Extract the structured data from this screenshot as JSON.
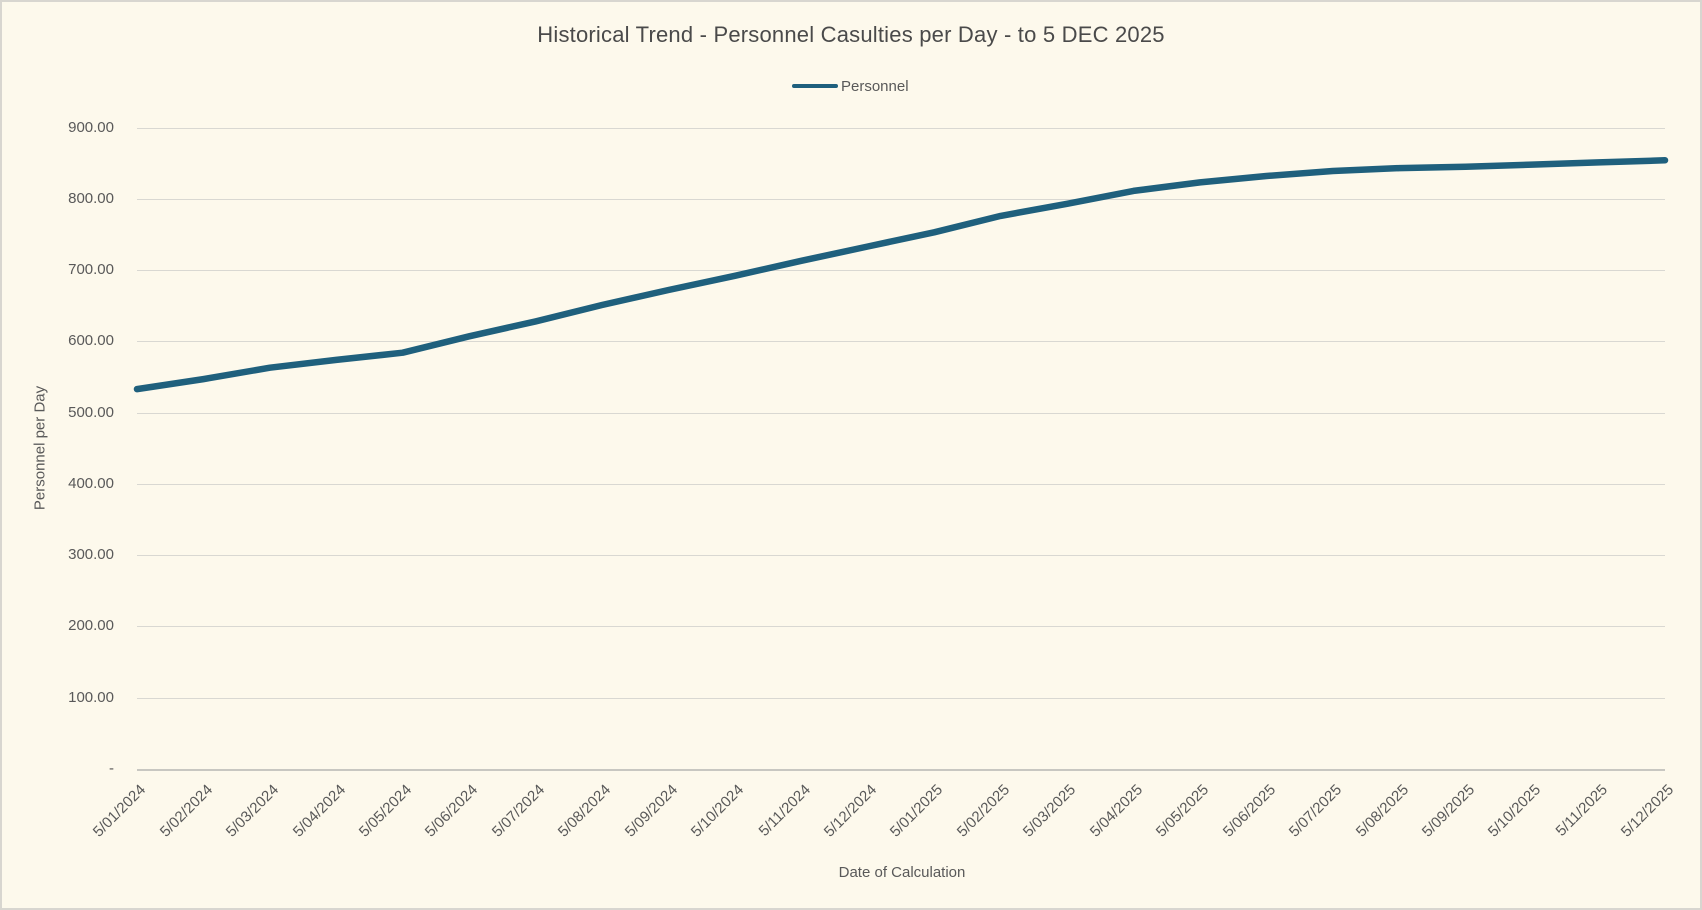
{
  "chart": {
    "title": "Historical Trend - Personnel Casulties per Day - to 5 DEC 2025",
    "legend_label": "Personnel",
    "x_axis_title": "Date of Calculation",
    "y_axis_title": "Personnel per Day",
    "colors": {
      "background": "#FDF9EC",
      "series_line": "#1F607D",
      "gridline": "#D9D8D2",
      "text": "#595959"
    }
  },
  "chart_data": {
    "type": "line",
    "title": "Historical Trend - Personnel Casulties per Day - to 5 DEC 2025",
    "xlabel": "Date of Calculation",
    "ylabel": "Personnel per Day",
    "legend_position": "top",
    "grid": true,
    "ylim": [
      0,
      900
    ],
    "yticks": [
      {
        "label": "900.00",
        "value": 900
      },
      {
        "label": "800.00",
        "value": 800
      },
      {
        "label": "700.00",
        "value": 700
      },
      {
        "label": "600.00",
        "value": 600
      },
      {
        "label": "500.00",
        "value": 500
      },
      {
        "label": "400.00",
        "value": 400
      },
      {
        "label": "300.00",
        "value": 300
      },
      {
        "label": "200.00",
        "value": 200
      },
      {
        "label": "100.00",
        "value": 100
      },
      {
        "label": "-",
        "value": 0
      }
    ],
    "categories": [
      "5/01/2024",
      "5/02/2024",
      "5/03/2024",
      "5/04/2024",
      "5/05/2024",
      "5/06/2024",
      "5/07/2024",
      "5/08/2024",
      "5/09/2024",
      "5/10/2024",
      "5/11/2024",
      "5/12/2024",
      "5/01/2025",
      "5/02/2025",
      "5/03/2025",
      "5/04/2025",
      "5/05/2025",
      "5/06/2025",
      "5/07/2025",
      "5/08/2025",
      "5/09/2025",
      "5/10/2025",
      "5/11/2025",
      "5/12/2025"
    ],
    "series": [
      {
        "name": "Personnel",
        "color": "#1F607D",
        "values": [
          533,
          547,
          563,
          574,
          584,
          607,
          628,
          651,
          672,
          692,
          713,
          733,
          753,
          776,
          793,
          811,
          823,
          832,
          839,
          843,
          845,
          848,
          851,
          854
        ]
      }
    ]
  }
}
